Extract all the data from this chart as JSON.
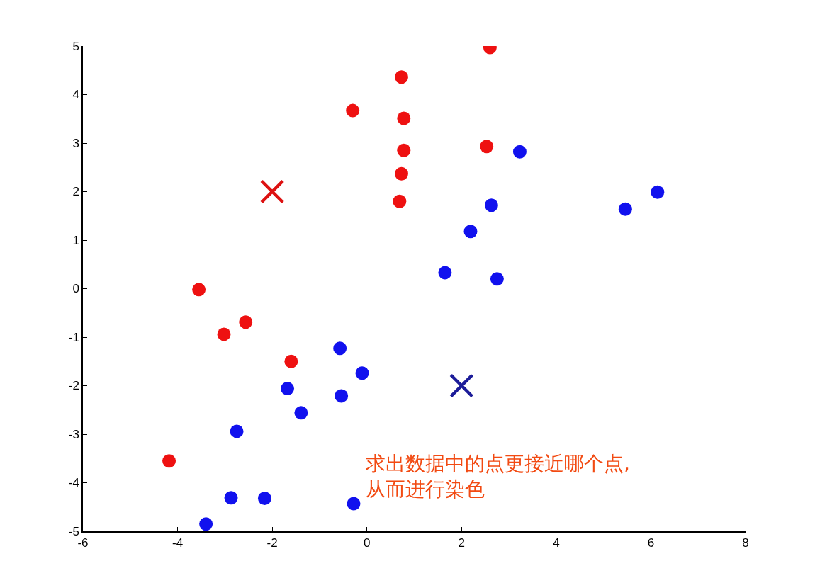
{
  "chart_data": {
    "type": "scatter",
    "xlim": [
      -6,
      8
    ],
    "ylim": [
      -5,
      5
    ],
    "xticks": [
      -6,
      -4,
      -2,
      0,
      2,
      4,
      6,
      8
    ],
    "yticks": [
      -5,
      -4,
      -3,
      -2,
      -1,
      0,
      1,
      2,
      3,
      4,
      5
    ],
    "grid": false,
    "series": [
      {
        "color": "#ee1111",
        "marker": "circle",
        "x": [
          2.6,
          0.73,
          -0.3,
          0.78,
          2.53,
          0.78,
          0.73,
          0.69,
          -3.55,
          -2.56,
          -3.02,
          -1.6,
          -4.18
        ],
        "values": [
          4.97,
          4.36,
          3.67,
          3.51,
          2.93,
          2.85,
          2.37,
          1.8,
          -0.02,
          -0.69,
          -0.94,
          -1.5,
          -3.55
        ]
      },
      {
        "color": "#1111ee",
        "marker": "circle",
        "x": [
          3.23,
          6.14,
          5.46,
          2.63,
          2.19,
          1.65,
          2.75,
          -0.57,
          -0.1,
          -1.68,
          -0.54,
          -1.39,
          -2.75,
          -2.87,
          -2.16,
          -0.28,
          -3.4
        ],
        "values": [
          2.82,
          1.99,
          1.64,
          1.72,
          1.18,
          0.33,
          0.2,
          -1.23,
          -1.74,
          -2.06,
          -2.21,
          -2.56,
          -2.94,
          -4.31,
          -4.32,
          -4.43,
          -4.85
        ]
      },
      {
        "color": "#dd1111",
        "marker": "cross",
        "x": [
          -2
        ],
        "values": [
          2
        ]
      },
      {
        "color": "#1c1c99",
        "marker": "cross",
        "x": [
          2
        ],
        "values": [
          -2
        ]
      }
    ],
    "annotations": [
      "求出数据中的点更接近哪个点,\n从而进行染色"
    ]
  }
}
